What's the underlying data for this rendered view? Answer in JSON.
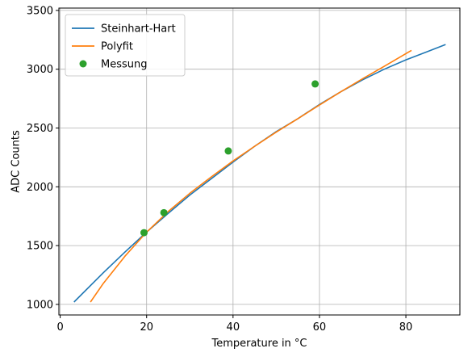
{
  "chart_data": {
    "type": "line",
    "xlabel": "Temperature in °C",
    "ylabel": "ADC Counts",
    "xlim": [
      -0.3,
      92.5
    ],
    "ylim": [
      910,
      3520
    ],
    "xticks": [
      0,
      20,
      40,
      60,
      80
    ],
    "yticks": [
      1000,
      1500,
      2000,
      2500,
      3000,
      3500
    ],
    "grid": true,
    "legend_position": "top-left",
    "series": [
      {
        "name": "Steinhart-Hart",
        "kind": "line",
        "color": "#1f77b4",
        "x": [
          3.2,
          10,
          15,
          20,
          25,
          30,
          35,
          40,
          45,
          50,
          55,
          60,
          65,
          70,
          75,
          80,
          85,
          89.2
        ],
        "y": [
          1020,
          1270,
          1445,
          1615,
          1775,
          1930,
          2070,
          2210,
          2345,
          2470,
          2580,
          2700,
          2810,
          2910,
          3000,
          3080,
          3150,
          3210
        ]
      },
      {
        "name": "Polyfit",
        "kind": "line",
        "color": "#ff7f0e",
        "x": [
          7,
          10,
          15,
          20,
          25,
          30,
          35,
          40,
          45,
          50,
          55,
          60,
          65,
          70,
          75,
          81.3
        ],
        "y": [
          1020,
          1180,
          1410,
          1615,
          1790,
          1945,
          2085,
          2220,
          2345,
          2465,
          2580,
          2695,
          2810,
          2920,
          3025,
          3160
        ]
      },
      {
        "name": "Messung",
        "kind": "scatter",
        "color": "#2ca02c",
        "x": [
          19.4,
          24,
          38.9,
          59
        ],
        "y": [
          1610,
          1780,
          2305,
          2875
        ]
      }
    ]
  }
}
